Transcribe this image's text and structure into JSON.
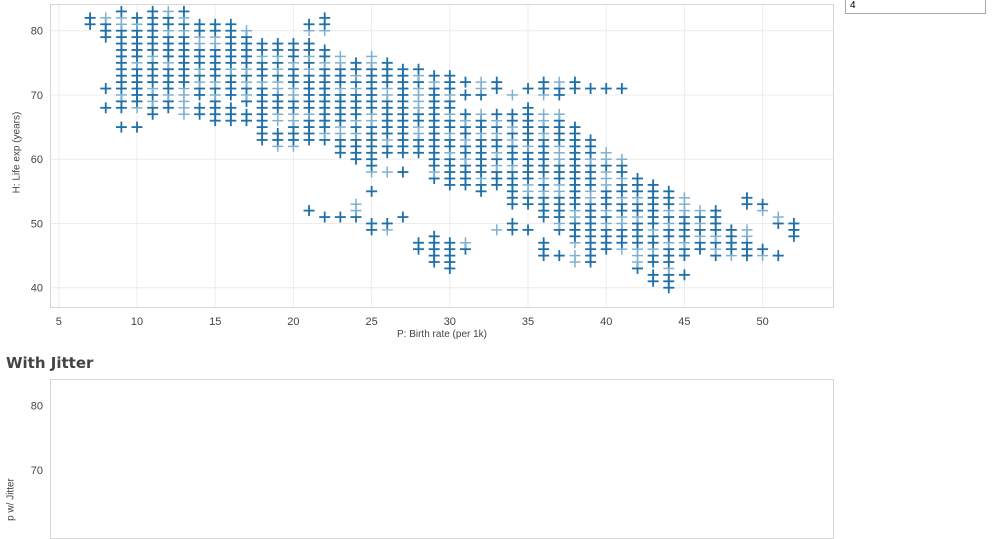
{
  "param_input": {
    "value": "4"
  },
  "section2_title": "With Jitter",
  "colors": {
    "series1": "#1f6fa8",
    "series1_light": "#7fb0d0",
    "series2": "#d9484b",
    "series2_light": "#ee9a9b",
    "grid": "#ececec"
  },
  "chart_data": [
    {
      "type": "scatter",
      "title": "",
      "xlabel": "P: Birth rate (per 1k)",
      "ylabel": "H: Life exp (years)",
      "xlim": [
        4.5,
        54.5
      ],
      "ylim": [
        37,
        84
      ],
      "x_ticks": [
        5,
        10,
        15,
        20,
        25,
        30,
        35,
        40,
        45,
        50
      ],
      "y_ticks": [
        40,
        50,
        60,
        70,
        80
      ],
      "grid": true,
      "marker": "plus",
      "columns": [
        {
          "x": 7,
          "y": [
            81,
            82
          ]
        },
        {
          "x": 8,
          "y": [
            68,
            71,
            79,
            80,
            81,
            82
          ]
        },
        {
          "x": 9,
          "y": [
            65,
            68,
            69,
            70,
            71,
            72,
            73,
            74,
            75,
            76,
            77,
            78,
            79,
            80,
            81,
            82,
            83
          ]
        },
        {
          "x": 10,
          "y": [
            65,
            68,
            69,
            70,
            71,
            72,
            73,
            74,
            75,
            76,
            77,
            78,
            79,
            80,
            81,
            82
          ]
        },
        {
          "x": 11,
          "y": [
            67,
            68,
            69,
            70,
            71,
            72,
            73,
            74,
            75,
            76,
            77,
            78,
            79,
            80,
            81,
            82,
            83
          ]
        },
        {
          "x": 12,
          "y": [
            68,
            69,
            70,
            71,
            72,
            73,
            74,
            75,
            76,
            77,
            78,
            79,
            80,
            81,
            82,
            83
          ]
        },
        {
          "x": 13,
          "y": [
            67,
            68,
            69,
            70,
            71,
            72,
            73,
            74,
            75,
            76,
            77,
            78,
            79,
            80,
            81,
            82,
            83
          ]
        },
        {
          "x": 14,
          "y": [
            67,
            68,
            70,
            71,
            72,
            73,
            74,
            75,
            76,
            77,
            78,
            79,
            80,
            81
          ]
        },
        {
          "x": 15,
          "y": [
            66,
            67,
            68,
            69,
            70,
            71,
            72,
            73,
            74,
            75,
            76,
            77,
            78,
            79,
            80,
            81
          ]
        },
        {
          "x": 16,
          "y": [
            66,
            67,
            68,
            70,
            71,
            72,
            73,
            74,
            75,
            76,
            77,
            78,
            79,
            80,
            81
          ]
        },
        {
          "x": 17,
          "y": [
            66,
            67,
            69,
            70,
            71,
            72,
            73,
            74,
            75,
            76,
            77,
            78,
            79,
            80
          ]
        },
        {
          "x": 18,
          "y": [
            63,
            64,
            65,
            66,
            67,
            68,
            69,
            70,
            71,
            72,
            73,
            74,
            75,
            76,
            77,
            78
          ]
        },
        {
          "x": 19,
          "y": [
            62,
            63,
            64,
            66,
            67,
            68,
            69,
            70,
            71,
            72,
            73,
            74,
            75,
            76,
            77,
            78
          ]
        },
        {
          "x": 20,
          "y": [
            62,
            63,
            64,
            65,
            66,
            67,
            68,
            69,
            70,
            71,
            72,
            73,
            74,
            75,
            76,
            77,
            78
          ]
        },
        {
          "x": 21,
          "y": [
            52,
            63,
            64,
            65,
            66,
            67,
            68,
            69,
            70,
            71,
            72,
            73,
            74,
            75,
            76,
            77,
            78,
            80,
            81
          ]
        },
        {
          "x": 22,
          "y": [
            51,
            63,
            64,
            65,
            66,
            67,
            68,
            69,
            70,
            71,
            72,
            73,
            74,
            75,
            76,
            77,
            80,
            81,
            82
          ]
        },
        {
          "x": 23,
          "y": [
            51,
            61,
            62,
            63,
            64,
            65,
            66,
            67,
            68,
            69,
            70,
            71,
            72,
            73,
            74,
            75,
            76
          ]
        },
        {
          "x": 24,
          "y": [
            51,
            52,
            53,
            60,
            61,
            62,
            63,
            64,
            65,
            66,
            67,
            68,
            69,
            70,
            71,
            72,
            73,
            74,
            75
          ]
        },
        {
          "x": 25,
          "y": [
            49,
            50,
            55,
            58,
            59,
            60,
            61,
            62,
            63,
            64,
            65,
            66,
            67,
            68,
            69,
            70,
            71,
            72,
            73,
            74,
            75,
            76
          ]
        },
        {
          "x": 26,
          "y": [
            49,
            50,
            58,
            61,
            62,
            63,
            64,
            65,
            66,
            67,
            68,
            69,
            70,
            71,
            72,
            73,
            74,
            75
          ]
        },
        {
          "x": 27,
          "y": [
            51,
            58,
            61,
            62,
            63,
            64,
            65,
            66,
            67,
            68,
            69,
            70,
            71,
            72,
            73,
            74
          ]
        },
        {
          "x": 28,
          "y": [
            46,
            47,
            61,
            62,
            63,
            64,
            65,
            66,
            67,
            68,
            69,
            70,
            71,
            72,
            73,
            74
          ]
        },
        {
          "x": 29,
          "y": [
            44,
            45,
            46,
            47,
            48,
            57,
            58,
            59,
            60,
            61,
            62,
            63,
            64,
            65,
            66,
            67,
            68,
            69,
            70,
            71,
            72,
            73
          ]
        },
        {
          "x": 30,
          "y": [
            43,
            44,
            45,
            46,
            47,
            56,
            57,
            58,
            59,
            60,
            61,
            62,
            63,
            64,
            65,
            66,
            67,
            68,
            69,
            70,
            71,
            72,
            73
          ]
        },
        {
          "x": 31,
          "y": [
            46,
            47,
            56,
            57,
            58,
            59,
            60,
            61,
            62,
            63,
            64,
            65,
            66,
            67,
            70,
            72
          ]
        },
        {
          "x": 32,
          "y": [
            55,
            56,
            57,
            58,
            59,
            60,
            61,
            62,
            63,
            64,
            65,
            66,
            67,
            70,
            71,
            72
          ]
        },
        {
          "x": 33,
          "y": [
            49,
            56,
            57,
            58,
            59,
            60,
            61,
            62,
            63,
            64,
            65,
            66,
            67,
            71,
            72
          ]
        },
        {
          "x": 34,
          "y": [
            49,
            50,
            53,
            54,
            55,
            56,
            57,
            58,
            59,
            60,
            61,
            62,
            63,
            64,
            65,
            66,
            67,
            70
          ]
        },
        {
          "x": 35,
          "y": [
            49,
            53,
            54,
            55,
            56,
            57,
            58,
            59,
            60,
            61,
            62,
            63,
            64,
            65,
            66,
            67,
            68,
            71
          ]
        },
        {
          "x": 36,
          "y": [
            45,
            46,
            47,
            51,
            52,
            53,
            54,
            55,
            56,
            57,
            58,
            59,
            60,
            61,
            62,
            63,
            64,
            65,
            66,
            67,
            70,
            71,
            72
          ]
        },
        {
          "x": 37,
          "y": [
            45,
            49,
            50,
            51,
            52,
            53,
            54,
            55,
            56,
            57,
            58,
            59,
            60,
            61,
            62,
            63,
            64,
            65,
            66,
            67,
            70,
            71,
            72
          ]
        },
        {
          "x": 38,
          "y": [
            44,
            45,
            47,
            48,
            49,
            50,
            51,
            52,
            53,
            54,
            55,
            56,
            57,
            58,
            59,
            60,
            61,
            62,
            63,
            64,
            65,
            71,
            72
          ]
        },
        {
          "x": 39,
          "y": [
            44,
            45,
            46,
            47,
            48,
            49,
            50,
            51,
            52,
            53,
            54,
            55,
            56,
            57,
            58,
            59,
            60,
            61,
            62,
            63,
            71
          ]
        },
        {
          "x": 40,
          "y": [
            46,
            47,
            48,
            49,
            50,
            51,
            52,
            53,
            54,
            55,
            56,
            57,
            58,
            59,
            60,
            61,
            71
          ]
        },
        {
          "x": 41,
          "y": [
            46,
            47,
            48,
            49,
            50,
            51,
            52,
            53,
            54,
            55,
            56,
            57,
            58,
            59,
            60,
            71
          ]
        },
        {
          "x": 42,
          "y": [
            43,
            44,
            45,
            46,
            47,
            48,
            49,
            50,
            51,
            52,
            53,
            54,
            55,
            56,
            57
          ]
        },
        {
          "x": 43,
          "y": [
            41,
            42,
            44,
            45,
            46,
            47,
            48,
            49,
            50,
            51,
            52,
            53,
            54,
            55,
            56
          ]
        },
        {
          "x": 44,
          "y": [
            40,
            41,
            42,
            43,
            44,
            45,
            46,
            47,
            48,
            49,
            50,
            51,
            52,
            53,
            54,
            55
          ]
        },
        {
          "x": 45,
          "y": [
            42,
            45,
            46,
            47,
            48,
            49,
            50,
            51,
            52,
            53,
            54
          ]
        },
        {
          "x": 46,
          "y": [
            46,
            47,
            48,
            49,
            50,
            51,
            52
          ]
        },
        {
          "x": 47,
          "y": [
            45,
            46,
            47,
            48,
            49,
            50,
            51,
            52
          ]
        },
        {
          "x": 48,
          "y": [
            45,
            46,
            47,
            48,
            49
          ]
        },
        {
          "x": 49,
          "y": [
            45,
            46,
            47,
            48,
            49,
            53,
            54
          ]
        },
        {
          "x": 50,
          "y": [
            45,
            46,
            52,
            53
          ]
        },
        {
          "x": 51,
          "y": [
            45,
            50,
            51
          ]
        },
        {
          "x": 52,
          "y": [
            48,
            49,
            50
          ]
        }
      ]
    },
    {
      "type": "scatter",
      "title": "With Jitter",
      "xlabel": "",
      "ylabel": "p w/ Jitter",
      "ylim": [
        37,
        84
      ],
      "y_ticks": [
        70,
        80
      ],
      "grid": true,
      "marker": "plus",
      "jitter": true
    }
  ]
}
